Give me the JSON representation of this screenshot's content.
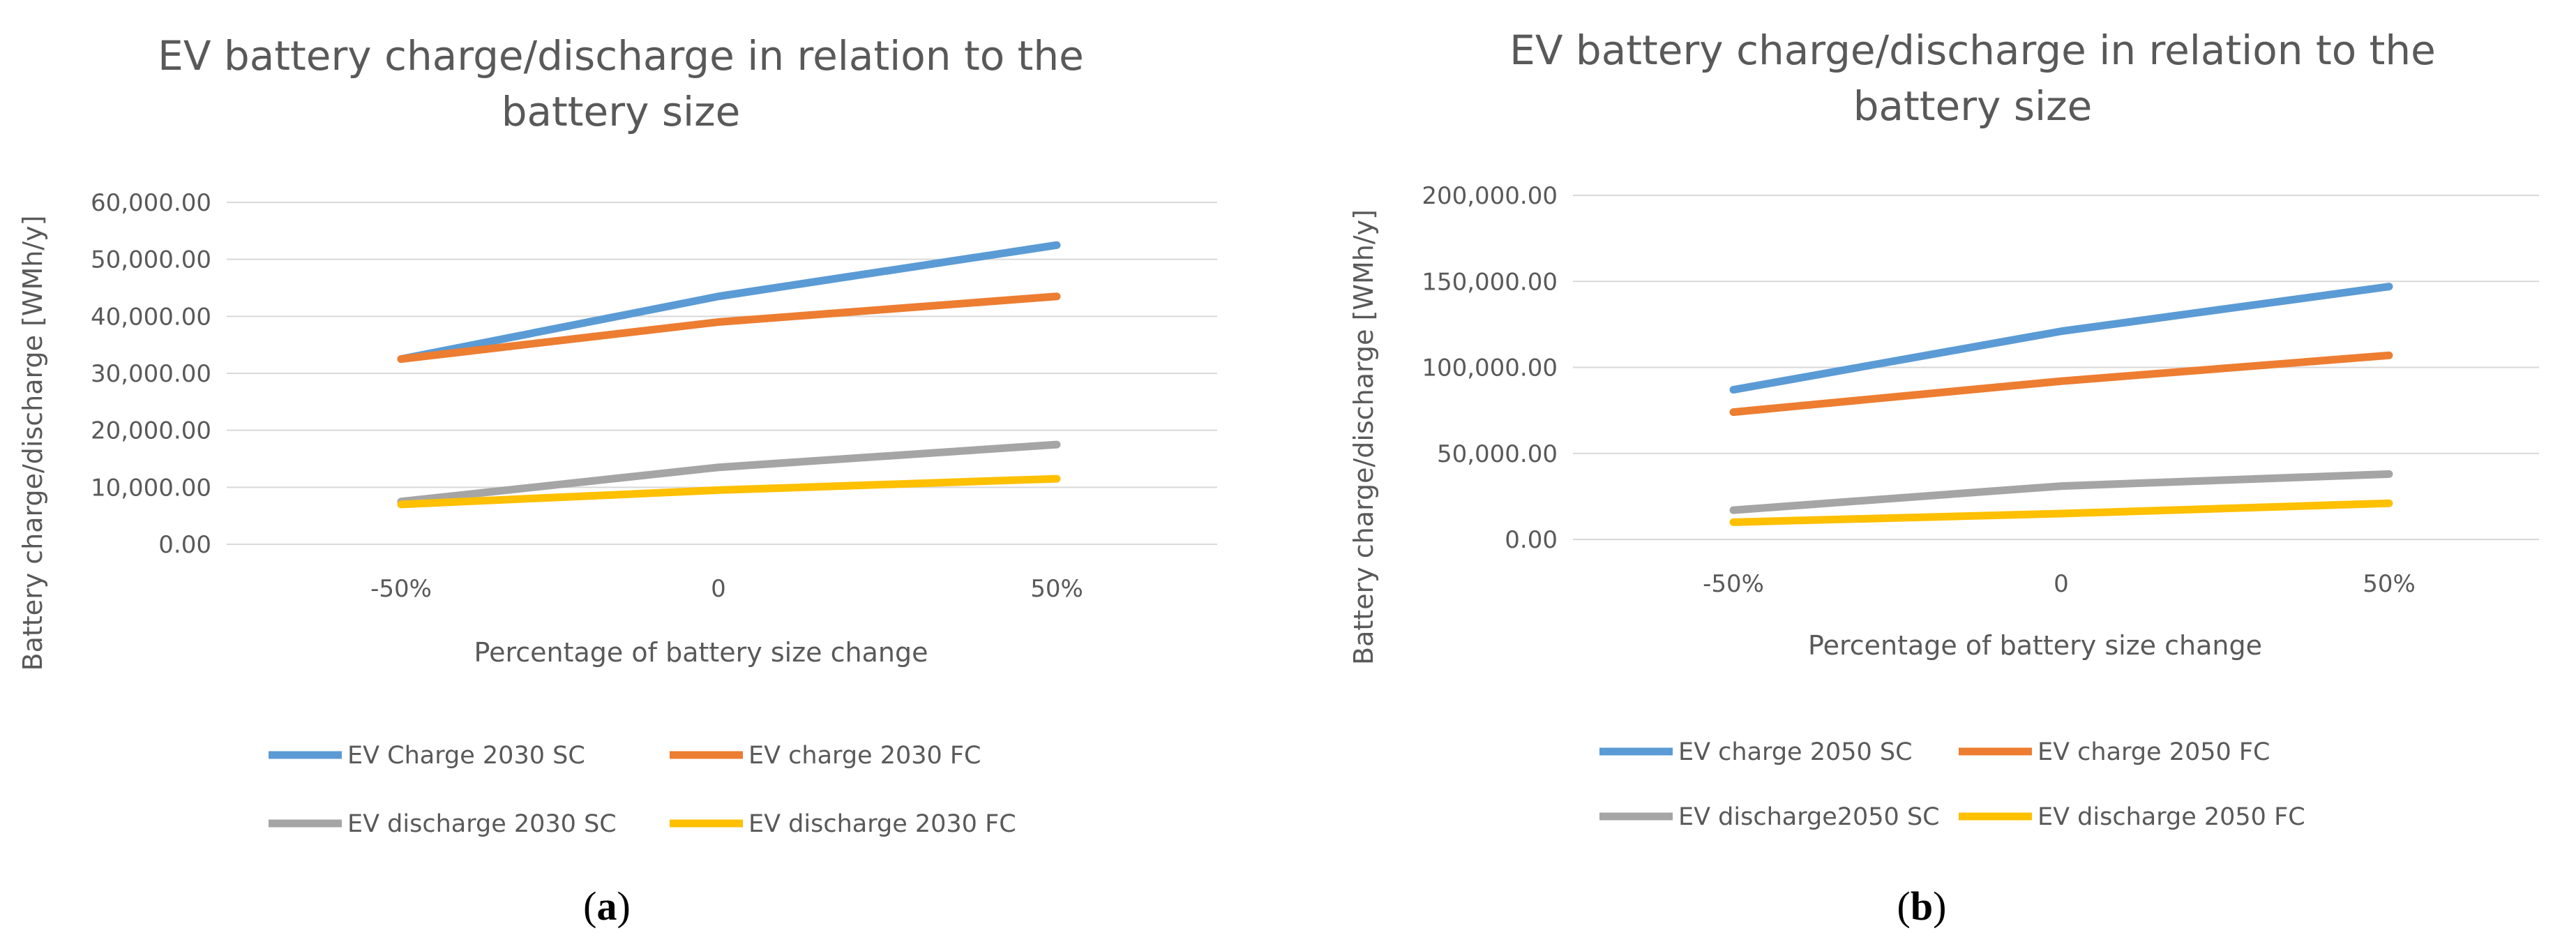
{
  "chart_data": [
    {
      "type": "line",
      "title": "EV battery charge/discharge in relation to the battery size",
      "title_lines": [
        "EV battery charge/discharge in relation to the",
        "battery size"
      ],
      "xlabel": "Percentage of battery size change",
      "ylabel": "Battery charge/discharge [WMh/y]",
      "categories": [
        "-50%",
        "0",
        "50%"
      ],
      "ylim": [
        0,
        60000
      ],
      "yticks": [
        0,
        10000,
        20000,
        30000,
        40000,
        50000,
        60000
      ],
      "ytick_labels": [
        "0.00",
        "10,000.00",
        "20,000.00",
        "30,000.00",
        "40,000.00",
        "50,000.00",
        "60,000.00"
      ],
      "grid": true,
      "series": [
        {
          "name": "EV Charge 2030 SC",
          "color": "#5B9BD5",
          "values": [
            32500,
            43500,
            52500
          ]
        },
        {
          "name": "EV charge 2030 FC",
          "color": "#ED7D31",
          "values": [
            32500,
            39000,
            43500
          ]
        },
        {
          "name": "EV discharge 2030 SC",
          "color": "#A5A5A5",
          "values": [
            7500,
            13500,
            17500
          ]
        },
        {
          "name": "EV discharge 2030 FC",
          "color": "#FFC000",
          "values": [
            7000,
            9500,
            11500
          ]
        }
      ],
      "caption": "a"
    },
    {
      "type": "line",
      "title": "EV battery charge/discharge in relation to the battery size",
      "title_lines": [
        "EV battery charge/discharge in relation to the",
        "battery size"
      ],
      "xlabel": "Percentage of battery size change",
      "ylabel": "Battery charge/discharge [WMh/y]",
      "categories": [
        "-50%",
        "0",
        "50%"
      ],
      "ylim": [
        0,
        200000
      ],
      "yticks": [
        0,
        50000,
        100000,
        150000,
        200000
      ],
      "ytick_labels": [
        "0.00",
        "50,000.00",
        "100,000.00",
        "150,000.00",
        "200,000.00"
      ],
      "grid": true,
      "series": [
        {
          "name": "EV charge 2050 SC",
          "color": "#5B9BD5",
          "values": [
            87000,
            121000,
            147000
          ]
        },
        {
          "name": "EV charge 2050 FC",
          "color": "#ED7D31",
          "values": [
            74000,
            92000,
            107000
          ]
        },
        {
          "name": "EV discharge2050 SC",
          "color": "#A5A5A5",
          "values": [
            17000,
            31000,
            38000
          ]
        },
        {
          "name": "EV discharge 2050 FC",
          "color": "#FFC000",
          "values": [
            10000,
            15000,
            21000
          ]
        }
      ],
      "caption": "b"
    }
  ]
}
